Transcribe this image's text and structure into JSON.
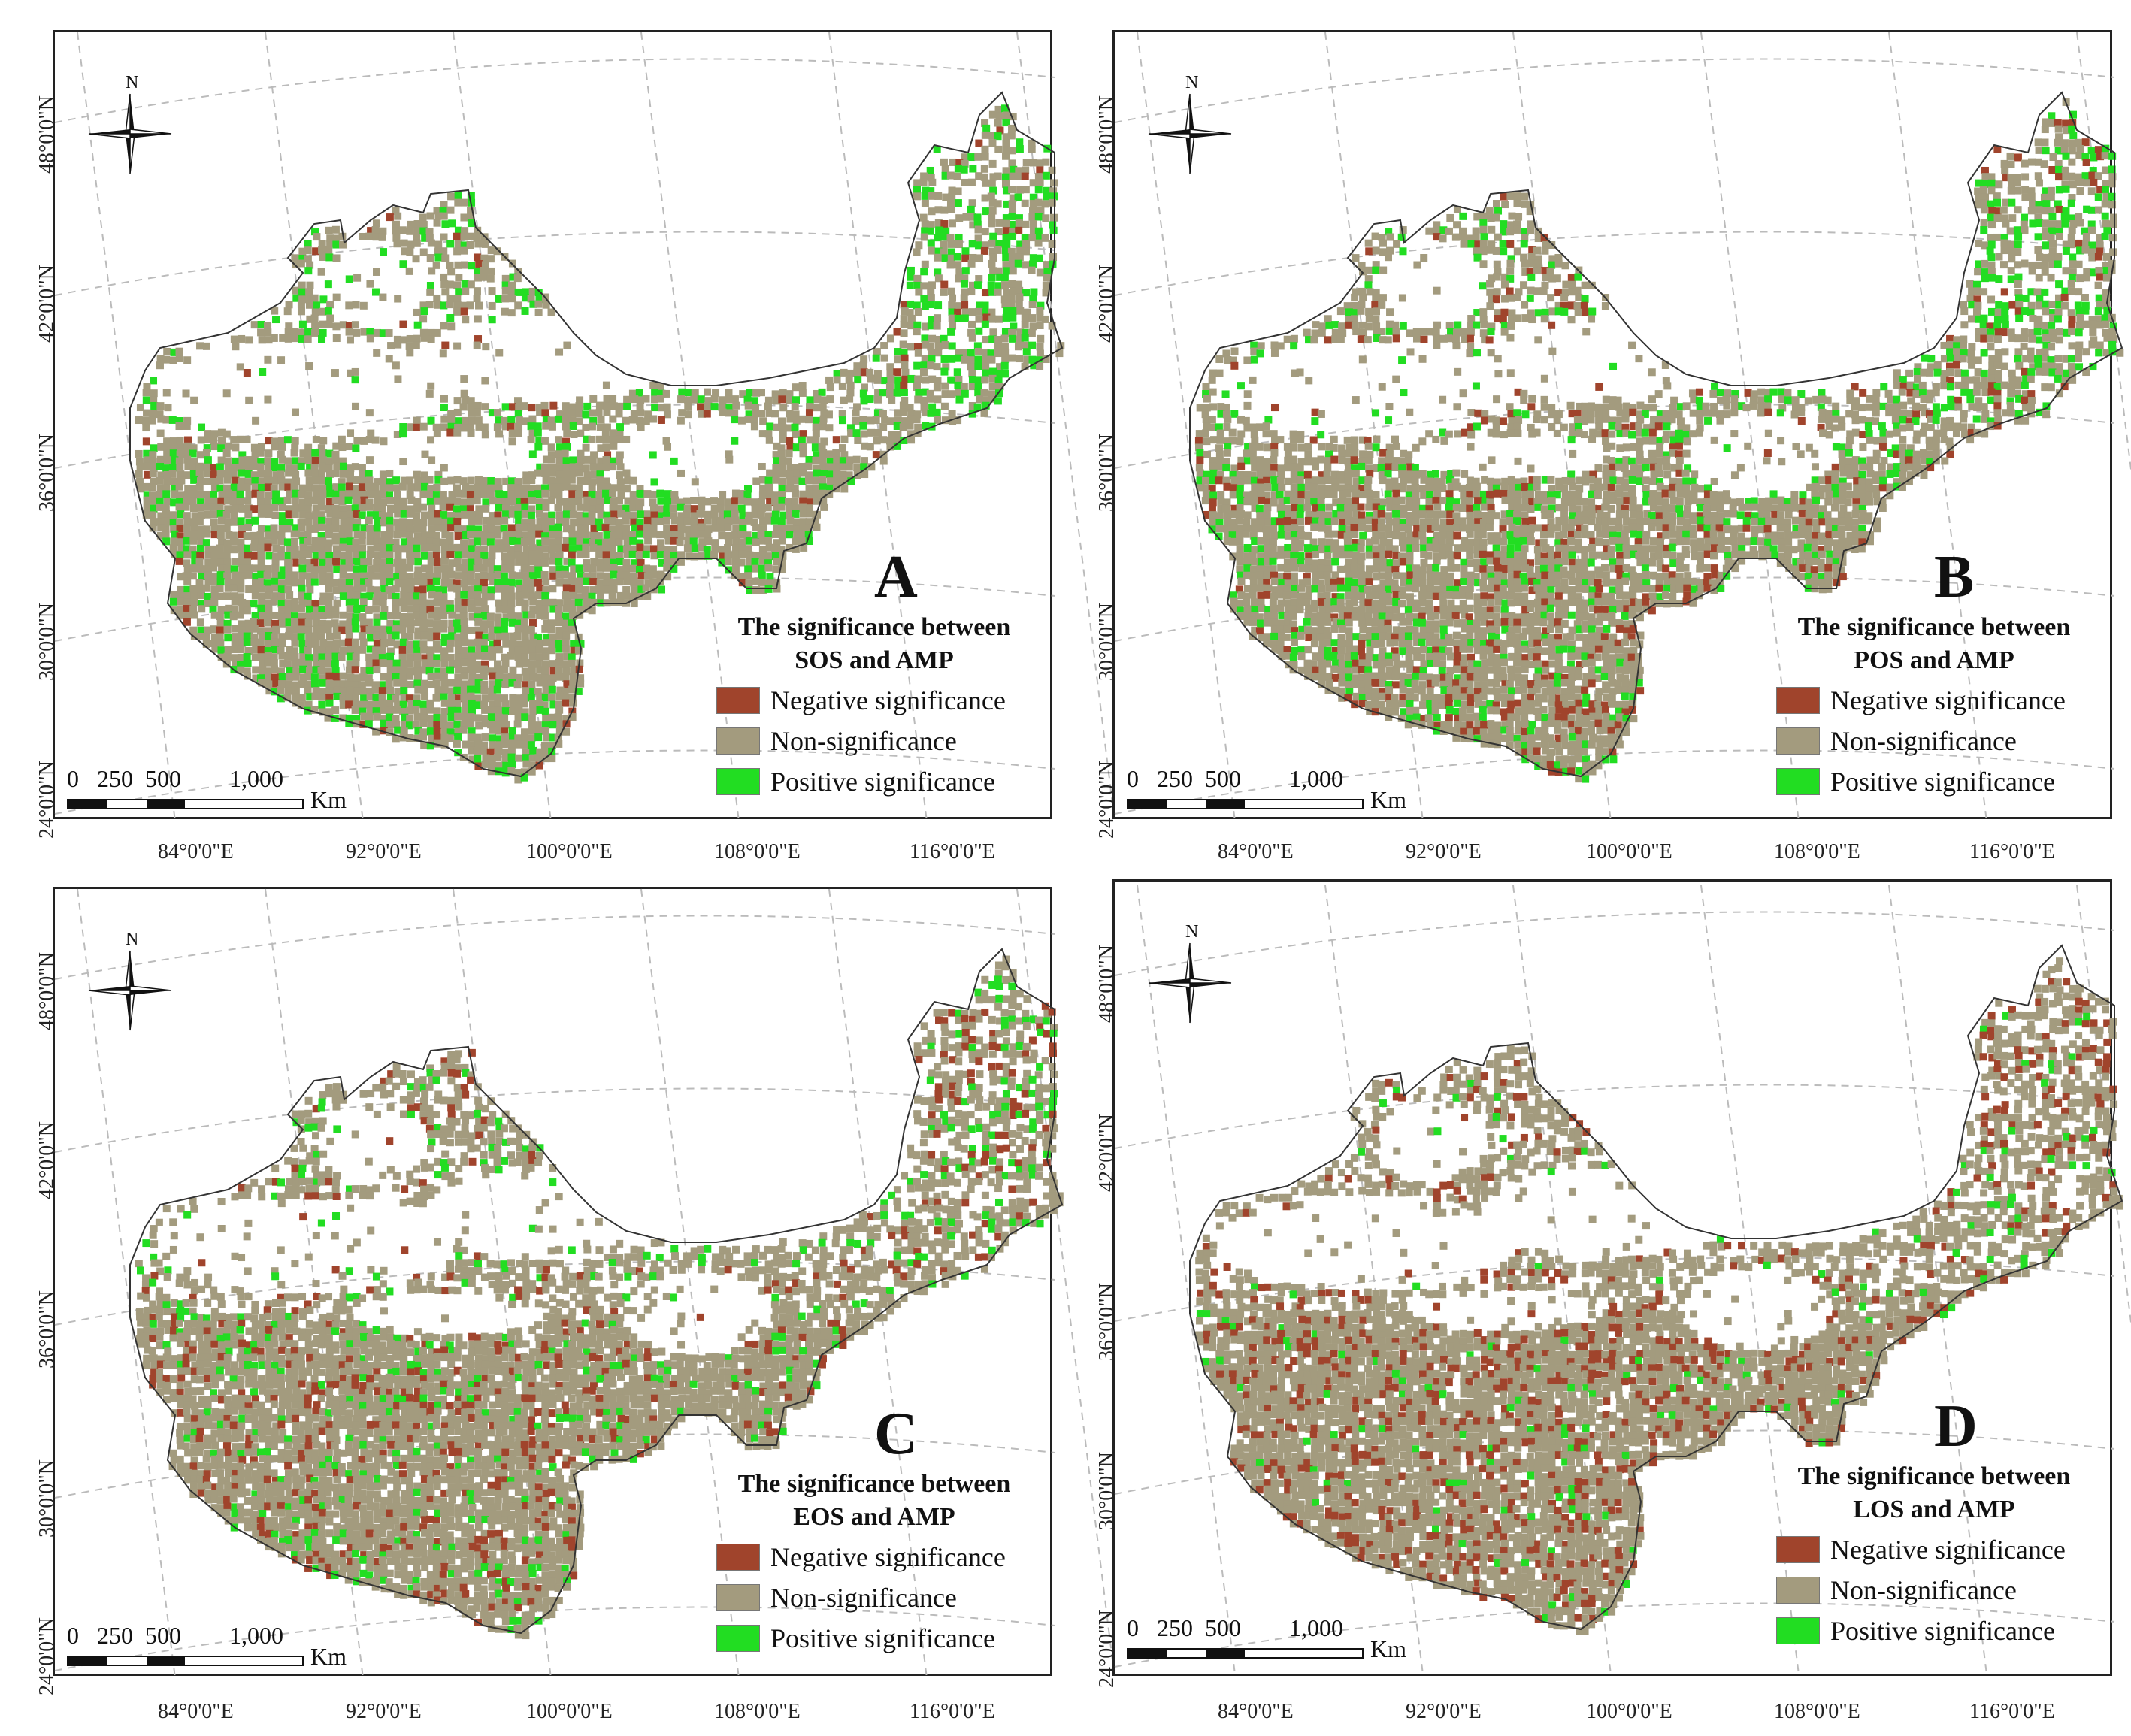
{
  "colors": {
    "negative": "#a0442c",
    "non": "#a39b7e",
    "positive": "#22dd22",
    "outline": "#333333",
    "grid": "#bbbbbb"
  },
  "compass_label": "N",
  "lat_labels": [
    "48°0'0\"N",
    "42°0'0\"N",
    "36°0'0\"N",
    "30°0'0\"N",
    "24°0'0\"N"
  ],
  "lon_labels": [
    "84°0'0\"E",
    "92°0'0\"E",
    "100°0'0\"E",
    "108°0'0\"E",
    "116°0'0\"E"
  ],
  "scale": {
    "labels": "0   250  500        1,000",
    "unit": "Km"
  },
  "legend": {
    "negative": "Negative significance",
    "non": "Non-significance",
    "positive": "Positive significance"
  },
  "panels": [
    {
      "letter": "A",
      "title_line1": "The significance between",
      "title_line2": "SOS and AMP",
      "pattern": {
        "negative_share": 0.04,
        "positive_share": 0.18
      }
    },
    {
      "letter": "B",
      "title_line1": "The significance between",
      "title_line2": "POS and AMP",
      "pattern": {
        "negative_share": 0.08,
        "positive_share": 0.14
      }
    },
    {
      "letter": "C",
      "title_line1": "The significance between",
      "title_line2": "EOS and AMP",
      "pattern": {
        "negative_share": 0.1,
        "positive_share": 0.08
      }
    },
    {
      "letter": "D",
      "title_line1": "The significance between",
      "title_line2": "LOS and AMP",
      "pattern": {
        "negative_share": 0.12,
        "positive_share": 0.04
      }
    }
  ]
}
